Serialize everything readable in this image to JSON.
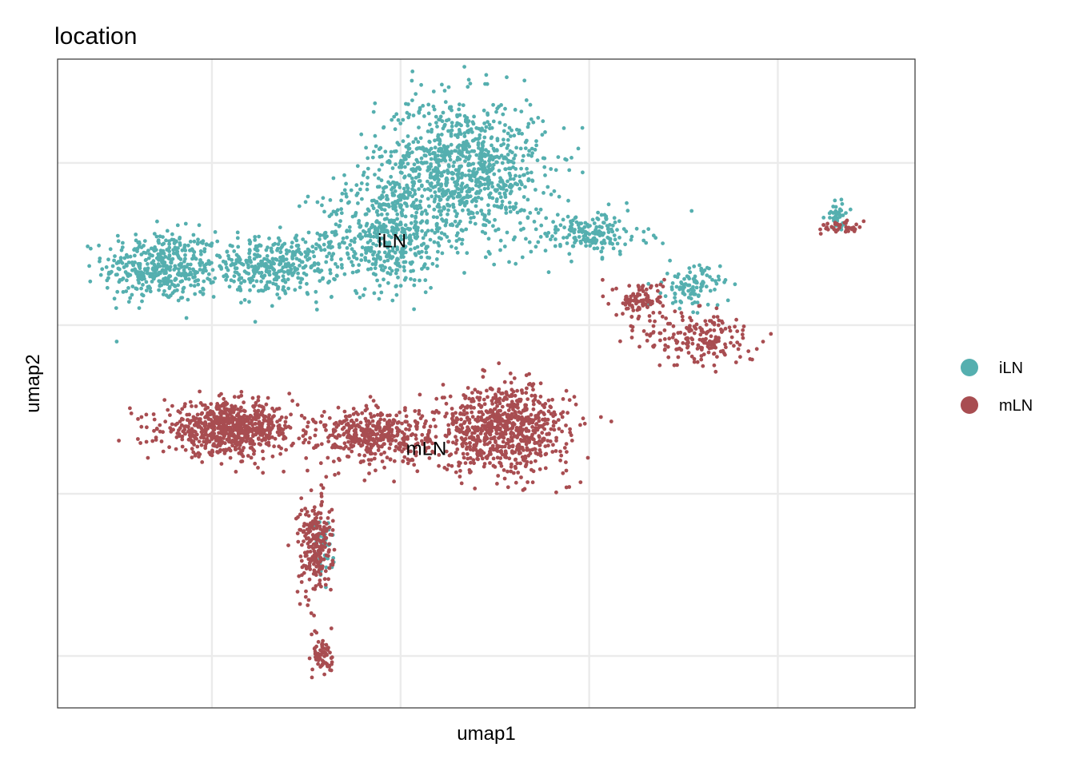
{
  "chart_data": {
    "type": "scatter",
    "title": "location",
    "xlabel": "umap1",
    "ylabel": "umap2",
    "xlim": [
      0,
      100
    ],
    "ylim": [
      0,
      100
    ],
    "x_ticks_shown": false,
    "y_ticks_shown": false,
    "grid": true,
    "legend_position": "right",
    "series": [
      {
        "name": "iLN",
        "color": "#55AFAF",
        "clusters": [
          {
            "center": [
              12,
              68
            ],
            "spread": [
              6,
              5
            ],
            "weight": 0.16
          },
          {
            "center": [
              25,
              68
            ],
            "spread": [
              7,
              4
            ],
            "weight": 0.14
          },
          {
            "center": [
              38,
              73
            ],
            "spread": [
              7,
              8
            ],
            "weight": 0.18
          },
          {
            "center": [
              47,
              83
            ],
            "spread": [
              9,
              10
            ],
            "weight": 0.38
          },
          {
            "center": [
              62,
              73
            ],
            "spread": [
              6,
              3
            ],
            "weight": 0.07
          },
          {
            "center": [
              74,
              65
            ],
            "spread": [
              3,
              3
            ],
            "weight": 0.04
          },
          {
            "center": [
              91,
              76
            ],
            "spread": [
              1.2,
              2
            ],
            "weight": 0.015
          },
          {
            "center": [
              31,
              24
            ],
            "spread": [
              1,
              4
            ],
            "weight": 0.015
          }
        ]
      },
      {
        "name": "mLN",
        "color": "#A84D51",
        "clusters": [
          {
            "center": [
              20,
              43
            ],
            "spread": [
              7,
              3.5
            ],
            "weight": 0.28
          },
          {
            "center": [
              37,
              42
            ],
            "spread": [
              6,
              4
            ],
            "weight": 0.16
          },
          {
            "center": [
              52,
              43
            ],
            "spread": [
              7,
              6
            ],
            "weight": 0.3
          },
          {
            "center": [
              30,
              25
            ],
            "spread": [
              1.8,
              7
            ],
            "weight": 0.09
          },
          {
            "center": [
              31,
              8
            ],
            "spread": [
              1,
              3
            ],
            "weight": 0.025
          },
          {
            "center": [
              68,
              63
            ],
            "spread": [
              2.5,
              2.5
            ],
            "weight": 0.04
          },
          {
            "center": [
              75,
              57
            ],
            "spread": [
              6,
              4
            ],
            "weight": 0.075
          },
          {
            "center": [
              91,
              74
            ],
            "spread": [
              2,
              1
            ],
            "weight": 0.015
          }
        ]
      }
    ],
    "annotations": [
      {
        "text": "iLN",
        "x": 39,
        "y": 71
      },
      {
        "text": "mLN",
        "x": 43,
        "y": 39
      }
    ]
  },
  "legend": {
    "items": [
      {
        "label": "iLN",
        "color": "#55AFAF"
      },
      {
        "label": "mLN",
        "color": "#A84D51"
      }
    ]
  }
}
